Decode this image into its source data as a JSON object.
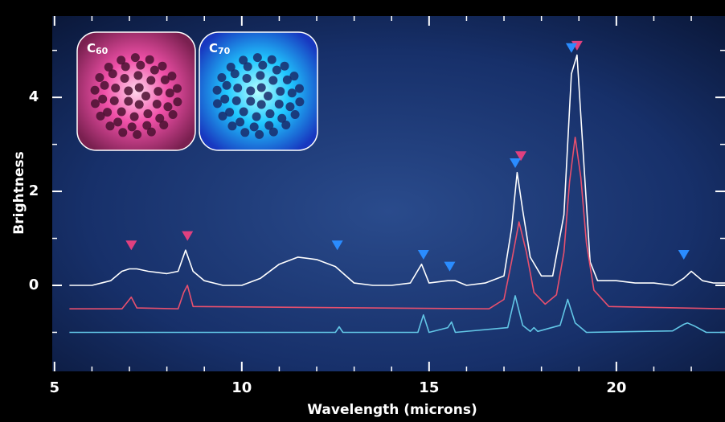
{
  "chart_data": {
    "type": "line",
    "xlabel": "Wavelength (microns)",
    "ylabel": "Brightness",
    "xlim": [
      4.94,
      22.9
    ],
    "ylim": [
      -1.83,
      5.73
    ],
    "xticks": [
      5,
      10,
      15,
      20
    ],
    "yticks": [
      0,
      2,
      4
    ],
    "xminorticks": [
      6,
      7,
      8,
      9,
      11,
      12,
      13,
      14,
      16,
      17,
      18,
      19,
      21,
      22
    ],
    "yminorticks": [
      -1,
      1,
      3,
      5
    ],
    "insets": [
      {
        "label": "C",
        "subscript": "60",
        "color": "#e0307f"
      },
      {
        "label": "C",
        "subscript": "70",
        "color": "#1ea8ff"
      }
    ],
    "series": [
      {
        "color": "#ffffff",
        "x": [
          5.4,
          6.0,
          6.5,
          6.8,
          7.0,
          7.2,
          7.5,
          8.0,
          8.3,
          8.5,
          8.7,
          9.0,
          9.5,
          10.0,
          10.5,
          11.0,
          11.5,
          12.0,
          12.5,
          13.0,
          13.5,
          14.0,
          14.5,
          14.8,
          15.0,
          15.5,
          15.7,
          16.0,
          16.5,
          17.0,
          17.2,
          17.35,
          17.5,
          17.7,
          18.0,
          18.3,
          18.6,
          18.8,
          18.95,
          19.1,
          19.3,
          19.5,
          20.0,
          20.5,
          21.0,
          21.5,
          21.8,
          22.0,
          22.3,
          22.6,
          22.9
        ],
        "values": [
          0.0,
          0.0,
          0.1,
          0.3,
          0.35,
          0.35,
          0.3,
          0.25,
          0.3,
          0.75,
          0.3,
          0.1,
          0.0,
          0.0,
          0.15,
          0.45,
          0.6,
          0.55,
          0.4,
          0.05,
          0.0,
          0.0,
          0.05,
          0.45,
          0.05,
          0.1,
          0.1,
          0.0,
          0.05,
          0.2,
          1.2,
          2.4,
          1.6,
          0.6,
          0.2,
          0.2,
          1.5,
          4.5,
          4.9,
          3.0,
          0.5,
          0.1,
          0.1,
          0.05,
          0.05,
          0.0,
          0.15,
          0.3,
          0.1,
          0.05,
          0.05
        ]
      },
      {
        "color": "#e8506e",
        "x": [
          5.4,
          6.8,
          6.95,
          7.05,
          7.2,
          8.3,
          8.45,
          8.55,
          8.7,
          16.6,
          17.0,
          17.2,
          17.4,
          17.6,
          17.8,
          18.1,
          18.4,
          18.6,
          18.75,
          18.9,
          19.05,
          19.2,
          19.4,
          19.8,
          22.9
        ],
        "values": [
          -0.5,
          -0.5,
          -0.35,
          -0.25,
          -0.48,
          -0.5,
          -0.15,
          0.0,
          -0.45,
          -0.5,
          -0.3,
          0.5,
          1.35,
          0.7,
          -0.15,
          -0.4,
          -0.2,
          0.7,
          2.2,
          3.15,
          2.3,
          0.9,
          -0.1,
          -0.45,
          -0.5
        ]
      },
      {
        "color": "#62c6e6",
        "x": [
          5.4,
          12.5,
          12.6,
          12.7,
          14.7,
          14.85,
          15.0,
          15.5,
          15.6,
          15.7,
          17.1,
          17.3,
          17.5,
          17.7,
          17.8,
          17.9,
          18.5,
          18.7,
          18.9,
          19.2,
          21.5,
          21.8,
          21.9,
          22.1,
          22.4,
          22.9
        ],
        "values": [
          -1.0,
          -1.0,
          -0.88,
          -1.0,
          -1.0,
          -0.63,
          -1.0,
          -0.9,
          -0.78,
          -1.0,
          -0.9,
          -0.22,
          -0.85,
          -0.98,
          -0.9,
          -0.98,
          -0.85,
          -0.3,
          -0.8,
          -1.0,
          -0.97,
          -0.83,
          -0.8,
          -0.87,
          -1.0,
          -1.0
        ]
      }
    ],
    "markers": [
      {
        "color": "#e0407f",
        "x": [
          7.05,
          8.55,
          17.45,
          18.95
        ],
        "values": [
          0.85,
          1.05,
          2.75,
          5.1
        ]
      },
      {
        "color": "#2a8cff",
        "x": [
          12.55,
          14.85,
          15.55,
          17.3,
          18.8,
          21.8
        ],
        "values": [
          0.85,
          0.65,
          0.4,
          2.6,
          5.05,
          0.65
        ]
      }
    ]
  }
}
